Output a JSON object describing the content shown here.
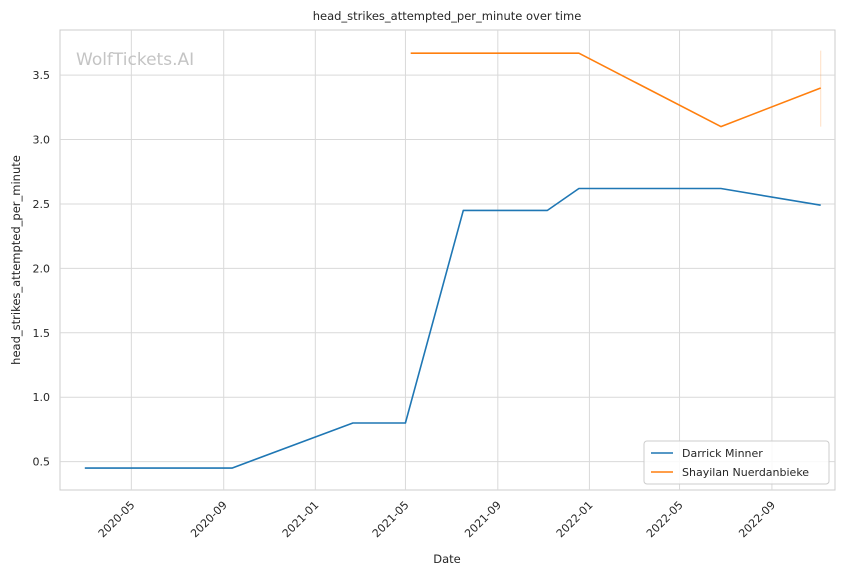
{
  "chart_data": {
    "type": "line",
    "title": "head_strikes_attempted_per_minute over time",
    "xlabel": "Date",
    "ylabel": "head_strikes_attempted_per_minute",
    "watermark": "WolfTickets.AI",
    "x_range": [
      "2020-01-27",
      "2022-11-24"
    ],
    "ylim": [
      0.28,
      3.85
    ],
    "x_ticks": [
      "2020-05",
      "2020-09",
      "2021-01",
      "2021-05",
      "2021-09",
      "2022-01",
      "2022-05",
      "2022-09"
    ],
    "y_ticks": [
      "0.5",
      "1.0",
      "1.5",
      "2.0",
      "2.5",
      "3.0",
      "3.5"
    ],
    "grid": true,
    "legend_position": "lower-right",
    "series": [
      {
        "name": "Darrick Minner",
        "color": "#1f77b4",
        "points": [
          {
            "x": "2020-02-29",
            "y": 0.45
          },
          {
            "x": "2020-09-12",
            "y": 0.45
          },
          {
            "x": "2021-02-20",
            "y": 0.8
          },
          {
            "x": "2021-05-01",
            "y": 0.8
          },
          {
            "x": "2021-07-17",
            "y": 2.45
          },
          {
            "x": "2021-11-06",
            "y": 2.45
          },
          {
            "x": "2021-12-18",
            "y": 2.62
          },
          {
            "x": "2022-06-25",
            "y": 2.62
          },
          {
            "x": "2022-11-05",
            "y": 2.49
          }
        ]
      },
      {
        "name": "Shayilan Nuerdanbieke",
        "color": "#ff7f0e",
        "points": [
          {
            "x": "2021-05-08",
            "y": 3.67
          },
          {
            "x": "2021-12-18",
            "y": 3.67
          },
          {
            "x": "2022-06-25",
            "y": 3.1
          },
          {
            "x": "2022-11-05",
            "y": 3.4
          }
        ],
        "error_band": {
          "x": "2022-11-05",
          "low": 3.1,
          "high": 3.69
        }
      }
    ]
  }
}
